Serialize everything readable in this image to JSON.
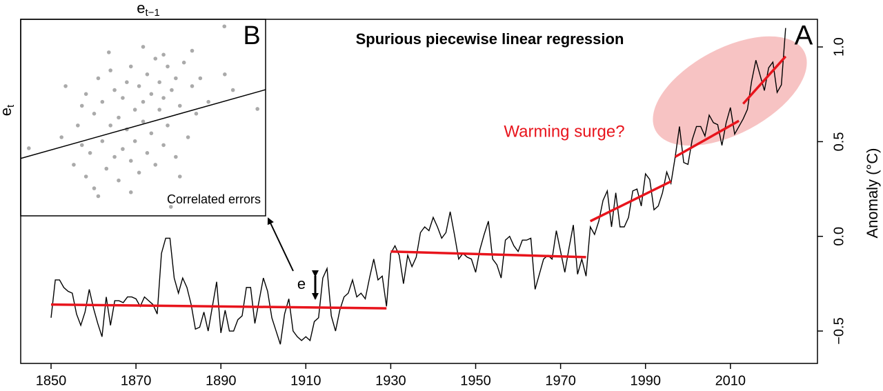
{
  "chart_data": [
    {
      "type": "line",
      "title": "Spurious piecewise linear regression",
      "panel_label": "A",
      "y_label": "Anomaly (°C)",
      "annotation": "Warming surge?",
      "error_label": "e",
      "x": [
        1850,
        1851,
        1852,
        1853,
        1854,
        1855,
        1856,
        1857,
        1858,
        1859,
        1860,
        1861,
        1862,
        1863,
        1864,
        1865,
        1866,
        1867,
        1868,
        1869,
        1870,
        1871,
        1872,
        1873,
        1874,
        1875,
        1876,
        1877,
        1878,
        1879,
        1880,
        1881,
        1882,
        1883,
        1884,
        1885,
        1886,
        1887,
        1888,
        1889,
        1890,
        1891,
        1892,
        1893,
        1894,
        1895,
        1896,
        1897,
        1898,
        1899,
        1900,
        1901,
        1902,
        1903,
        1904,
        1905,
        1906,
        1907,
        1908,
        1909,
        1910,
        1911,
        1912,
        1913,
        1914,
        1915,
        1916,
        1917,
        1918,
        1919,
        1920,
        1921,
        1922,
        1923,
        1924,
        1925,
        1926,
        1927,
        1928,
        1929,
        1930,
        1931,
        1932,
        1933,
        1934,
        1935,
        1936,
        1937,
        1938,
        1939,
        1940,
        1941,
        1942,
        1943,
        1944,
        1945,
        1946,
        1947,
        1948,
        1949,
        1950,
        1951,
        1952,
        1953,
        1954,
        1955,
        1956,
        1957,
        1958,
        1959,
        1960,
        1961,
        1962,
        1963,
        1964,
        1965,
        1966,
        1967,
        1968,
        1969,
        1970,
        1971,
        1972,
        1973,
        1974,
        1975,
        1976,
        1977,
        1978,
        1979,
        1980,
        1981,
        1982,
        1983,
        1984,
        1985,
        1986,
        1987,
        1988,
        1989,
        1990,
        1991,
        1992,
        1993,
        1994,
        1995,
        1996,
        1997,
        1998,
        1999,
        2000,
        2001,
        2002,
        2003,
        2004,
        2005,
        2006,
        2007,
        2008,
        2009,
        2010,
        2011,
        2012,
        2013,
        2014,
        2015,
        2016,
        2017,
        2018,
        2019,
        2020,
        2021,
        2022,
        2023
      ],
      "series": [
        {
          "color": "#000000",
          "values": [
            -0.43,
            -0.23,
            -0.23,
            -0.27,
            -0.29,
            -0.3,
            -0.41,
            -0.47,
            -0.4,
            -0.28,
            -0.38,
            -0.46,
            -0.53,
            -0.32,
            -0.47,
            -0.34,
            -0.34,
            -0.35,
            -0.32,
            -0.32,
            -0.33,
            -0.37,
            -0.32,
            -0.34,
            -0.36,
            -0.41,
            -0.09,
            -0.01,
            -0.01,
            -0.22,
            -0.3,
            -0.22,
            -0.27,
            -0.36,
            -0.49,
            -0.48,
            -0.4,
            -0.5,
            -0.37,
            -0.24,
            -0.51,
            -0.39,
            -0.5,
            -0.5,
            -0.44,
            -0.42,
            -0.27,
            -0.27,
            -0.46,
            -0.34,
            -0.22,
            -0.29,
            -0.43,
            -0.5,
            -0.57,
            -0.41,
            -0.33,
            -0.5,
            -0.53,
            -0.55,
            -0.53,
            -0.55,
            -0.45,
            -0.43,
            -0.22,
            -0.17,
            -0.42,
            -0.5,
            -0.39,
            -0.32,
            -0.3,
            -0.23,
            -0.32,
            -0.3,
            -0.33,
            -0.22,
            -0.12,
            -0.23,
            -0.21,
            -0.37,
            -0.09,
            -0.05,
            -0.1,
            -0.25,
            -0.1,
            -0.16,
            -0.11,
            0.02,
            0.05,
            0.03,
            0.1,
            0.05,
            -0.01,
            0.02,
            0.13,
            0.01,
            -0.12,
            -0.09,
            -0.11,
            -0.12,
            -0.19,
            -0.07,
            0.01,
            0.08,
            -0.12,
            -0.15,
            -0.22,
            -0.02,
            0.0,
            -0.05,
            -0.08,
            -0.02,
            -0.02,
            -0.01,
            -0.28,
            -0.2,
            -0.12,
            -0.1,
            -0.12,
            0.03,
            -0.08,
            -0.19,
            -0.06,
            0.06,
            -0.2,
            -0.12,
            -0.21,
            0.05,
            0.01,
            0.08,
            0.19,
            0.24,
            0.05,
            0.23,
            0.05,
            0.05,
            0.1,
            0.24,
            0.25,
            0.16,
            0.33,
            0.3,
            0.14,
            0.16,
            0.23,
            0.34,
            0.28,
            0.42,
            0.58,
            0.39,
            0.38,
            0.51,
            0.58,
            0.58,
            0.53,
            0.64,
            0.6,
            0.59,
            0.48,
            0.6,
            0.68,
            0.54,
            0.58,
            0.62,
            0.67,
            0.82,
            0.93,
            0.85,
            0.77,
            0.89,
            0.92,
            0.76,
            0.8,
            1.1
          ]
        }
      ],
      "segments": {
        "color": "#e8141c",
        "lines": [
          {
            "x": [
              1850,
              1929
            ],
            "y": [
              -0.36,
              -0.38
            ]
          },
          {
            "x": [
              1930,
              1976
            ],
            "y": [
              -0.08,
              -0.11
            ]
          },
          {
            "x": [
              1977,
              1996
            ],
            "y": [
              0.08,
              0.29
            ]
          },
          {
            "x": [
              1997,
              2012
            ],
            "y": [
              0.42,
              0.61
            ]
          },
          {
            "x": [
              2013,
              2023
            ],
            "y": [
              0.7,
              0.95
            ]
          }
        ]
      },
      "xlim": [
        1842.85,
        2030.5
      ],
      "ylim": [
        -0.671,
        1.146
      ],
      "xticks": [
        1850,
        1870,
        1890,
        1910,
        1930,
        1950,
        1970,
        1990,
        2010
      ],
      "yticks": [
        {
          "value": -0.5,
          "label": "−0.5"
        },
        {
          "value": 0,
          "label": "0.0"
        },
        0.5,
        {
          "value": 1,
          "label": "1.0"
        }
      ]
    },
    {
      "type": "scatter",
      "panel_label": "B",
      "x_label": {
        "base": "e",
        "sub": "t−1"
      },
      "y_label": {
        "base": "e",
        "sub": "t"
      },
      "annotation": "Correlated errors",
      "color": "#aaaaaa",
      "x": [
        -0.28,
        -0.2,
        -0.19,
        -0.17,
        -0.16,
        -0.15,
        -0.14,
        -0.14,
        -0.13,
        -0.12,
        -0.12,
        -0.11,
        -0.1,
        -0.1,
        -0.09,
        -0.08,
        -0.08,
        -0.07,
        -0.07,
        -0.06,
        -0.06,
        -0.05,
        -0.05,
        -0.04,
        -0.04,
        -0.03,
        -0.03,
        -0.02,
        -0.02,
        -0.01,
        -0.01,
        0.0,
        0.0,
        0.01,
        0.01,
        0.02,
        0.02,
        0.03,
        0.03,
        0.04,
        0.04,
        0.05,
        0.05,
        0.06,
        0.06,
        0.07,
        0.08,
        0.08,
        0.09,
        0.1,
        0.11,
        0.12,
        0.13,
        0.14,
        0.16,
        0.2,
        0.22,
        0.28,
        -0.084,
        0.068,
        0.199,
        0.05,
        -0.11,
        0.0,
        -0.15,
        0.09,
        0.12,
        -0.03
      ],
      "y": [
        -0.078,
        -0.05,
        0.08,
        -0.12,
        -0.02,
        0.03,
        -0.15,
        0.06,
        -0.09,
        0.01,
        -0.18,
        0.1,
        -0.06,
        0.04,
        -0.13,
        0.12,
        -0.02,
        -0.1,
        0.07,
        0.0,
        -0.16,
        0.05,
        -0.08,
        0.09,
        -0.03,
        0.13,
        -0.11,
        0.02,
        -0.06,
        0.08,
        -0.14,
        0.04,
        -0.01,
        0.11,
        -0.09,
        0.06,
        -0.04,
        0.15,
        -0.12,
        0.02,
        0.09,
        -0.07,
        0.05,
        0.13,
        -0.02,
        0.07,
        -0.1,
        0.1,
        0.03,
        0.14,
        -0.05,
        0.08,
        0.01,
        0.1,
        0.04,
        0.11,
        0.07,
        0.022,
        0.166,
        -0.227,
        0.232,
        0.16,
        -0.2,
        0.18,
        -0.07,
        -0.15,
        0.17,
        -0.19
      ],
      "fit": {
        "x": [
          -0.3,
          0.3
        ],
        "y": [
          -0.104,
          0.071
        ],
        "color": "#000000"
      },
      "xlim": [
        -0.3,
        0.3
      ],
      "ylim": [
        -0.25,
        0.25
      ]
    }
  ]
}
